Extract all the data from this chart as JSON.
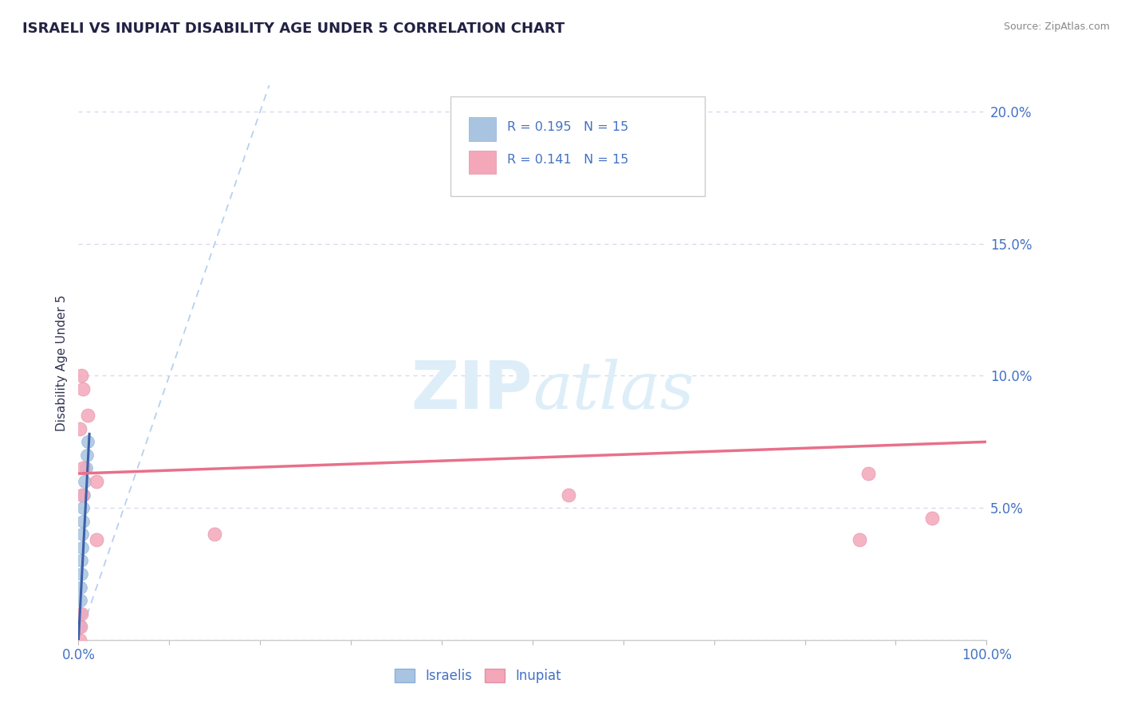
{
  "title": "ISRAELI VS INUPIAT DISABILITY AGE UNDER 5 CORRELATION CHART",
  "source_text": "Source: ZipAtlas.com",
  "ylabel": "Disability Age Under 5",
  "R_israeli": 0.195,
  "N_israeli": 15,
  "R_inupiat": 0.141,
  "N_inupiat": 15,
  "israeli_x": [
    0.001,
    0.001,
    0.002,
    0.002,
    0.003,
    0.003,
    0.004,
    0.004,
    0.005,
    0.005,
    0.006,
    0.007,
    0.008,
    0.009,
    0.01
  ],
  "israeli_y": [
    0.005,
    0.01,
    0.015,
    0.02,
    0.025,
    0.03,
    0.035,
    0.04,
    0.045,
    0.05,
    0.055,
    0.06,
    0.065,
    0.07,
    0.075
  ],
  "inupiat_x": [
    0.001,
    0.002,
    0.003,
    0.004,
    0.005,
    0.01,
    0.02,
    0.15,
    0.54,
    0.86
  ],
  "inupiat_y": [
    0.0,
    0.005,
    0.01,
    0.055,
    0.065,
    0.085,
    0.06,
    0.04,
    0.055,
    0.038
  ],
  "inupiat_x2": [
    0.001,
    0.003,
    0.005,
    0.02,
    0.87,
    0.94
  ],
  "inupiat_y2": [
    0.08,
    0.1,
    0.095,
    0.038,
    0.063,
    0.046
  ],
  "xlim": [
    0.0,
    1.0
  ],
  "ylim": [
    0.0,
    0.21
  ],
  "yticks": [
    0.0,
    0.05,
    0.1,
    0.15,
    0.2
  ],
  "ytick_labels": [
    "",
    "5.0%",
    "10.0%",
    "15.0%",
    "20.0%"
  ],
  "xtick_positions": [
    0.0,
    1.0
  ],
  "xtick_labels": [
    "0.0%",
    "100.0%"
  ],
  "color_israeli": "#a8c4e0",
  "color_inupiat": "#f4a7b9",
  "line_color_israeli": "#3a5faa",
  "line_color_inupiat": "#e8708a",
  "diagonal_color": "#b8d0ee",
  "background_color": "#ffffff",
  "grid_color": "#d0d8e8",
  "title_color": "#222244",
  "axis_label_color": "#4472c4",
  "legend_R_color": "#4472c4",
  "watermark_color": "#ddeef8",
  "isr_trend_x": [
    0.0,
    0.012
  ],
  "isr_trend_y": [
    0.0,
    0.078
  ],
  "inp_trend_x": [
    0.0,
    1.0
  ],
  "inp_trend_y": [
    0.063,
    0.075
  ]
}
